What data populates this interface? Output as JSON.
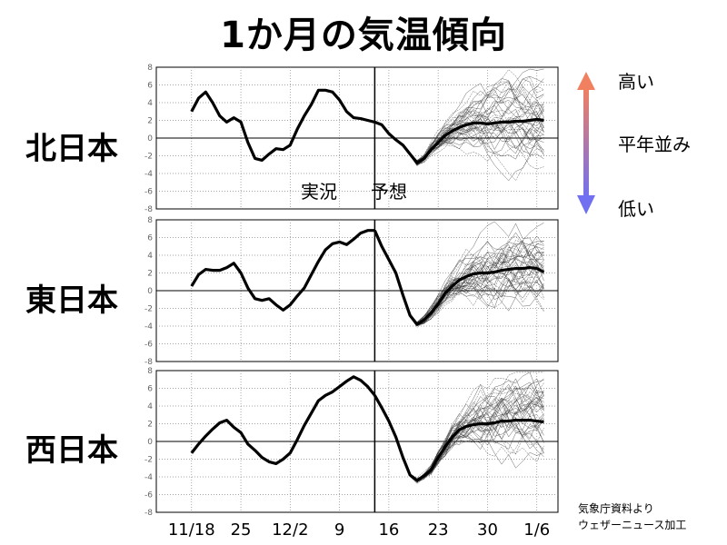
{
  "title": "1か月の気温傾向",
  "legend": {
    "high": "高い",
    "normal": "平年並み",
    "low": "低い",
    "arrow_top_color": "#f08060",
    "arrow_bottom_color": "#7070f0"
  },
  "credit": {
    "line1": "気象庁資料より",
    "line2": "ウェザーニュース加工"
  },
  "annotations": {
    "observed": "実況",
    "forecast": "予想"
  },
  "chart_data": {
    "type": "line",
    "x_tick_labels": [
      "11/18",
      "25",
      "12/2",
      "9",
      "16",
      "23",
      "30",
      "1/6"
    ],
    "x_tick_days": [
      0,
      7,
      14,
      21,
      28,
      35,
      42,
      49
    ],
    "xlim": [
      -5,
      52
    ],
    "ylim": [
      -8,
      8
    ],
    "y_ticks": [
      -8,
      -6,
      -4,
      -2,
      0,
      2,
      4,
      6,
      8
    ],
    "observed_end_day": 26,
    "grid": true,
    "panels": [
      {
        "region": "北日本",
        "observed": [
          [
            0,
            3.0
          ],
          [
            1,
            4.5
          ],
          [
            2,
            5.2
          ],
          [
            3,
            4.0
          ],
          [
            4,
            2.5
          ],
          [
            5,
            1.8
          ],
          [
            6,
            2.3
          ],
          [
            7,
            1.8
          ],
          [
            8,
            -0.5
          ],
          [
            9,
            -2.3
          ],
          [
            10,
            -2.5
          ],
          [
            11,
            -1.8
          ],
          [
            12,
            -1.2
          ],
          [
            13,
            -1.3
          ],
          [
            14,
            -0.8
          ],
          [
            15,
            1.0
          ],
          [
            16,
            2.5
          ],
          [
            17,
            3.8
          ],
          [
            18,
            5.4
          ],
          [
            19,
            5.4
          ],
          [
            20,
            5.2
          ],
          [
            21,
            4.3
          ],
          [
            22,
            3.0
          ],
          [
            23,
            2.3
          ],
          [
            24,
            2.2
          ],
          [
            25,
            2.0
          ],
          [
            26,
            1.8
          ]
        ],
        "ensemble_mean": [
          [
            26,
            1.8
          ],
          [
            27,
            1.5
          ],
          [
            28,
            0.5
          ],
          [
            29,
            -0.2
          ],
          [
            30,
            -0.8
          ],
          [
            31,
            -1.8
          ],
          [
            32,
            -2.8
          ],
          [
            33,
            -2.3
          ],
          [
            34,
            -1.3
          ],
          [
            35,
            -0.5
          ],
          [
            36,
            0.3
          ],
          [
            37,
            0.8
          ],
          [
            38,
            1.2
          ],
          [
            39,
            1.5
          ],
          [
            40,
            1.7
          ],
          [
            41,
            1.7
          ],
          [
            42,
            1.6
          ],
          [
            43,
            1.7
          ],
          [
            44,
            1.8
          ],
          [
            45,
            1.8
          ],
          [
            46,
            1.9
          ],
          [
            47,
            1.9
          ],
          [
            48,
            2.0
          ],
          [
            49,
            2.1
          ],
          [
            50,
            2.0
          ]
        ]
      },
      {
        "region": "東日本",
        "observed": [
          [
            0,
            0.5
          ],
          [
            1,
            1.8
          ],
          [
            2,
            2.4
          ],
          [
            3,
            2.3
          ],
          [
            4,
            2.3
          ],
          [
            5,
            2.6
          ],
          [
            6,
            3.1
          ],
          [
            7,
            2.0
          ],
          [
            8,
            0.3
          ],
          [
            9,
            -0.9
          ],
          [
            10,
            -1.1
          ],
          [
            11,
            -0.9
          ],
          [
            12,
            -1.6
          ],
          [
            13,
            -2.2
          ],
          [
            14,
            -1.6
          ],
          [
            15,
            -0.6
          ],
          [
            16,
            0.3
          ],
          [
            17,
            1.8
          ],
          [
            18,
            3.3
          ],
          [
            19,
            4.6
          ],
          [
            20,
            5.3
          ],
          [
            21,
            5.5
          ],
          [
            22,
            5.2
          ],
          [
            23,
            5.8
          ],
          [
            24,
            6.5
          ],
          [
            25,
            6.8
          ],
          [
            26,
            6.8
          ]
        ],
        "ensemble_mean": [
          [
            26,
            6.8
          ],
          [
            27,
            5.0
          ],
          [
            28,
            3.5
          ],
          [
            29,
            2.0
          ],
          [
            30,
            -0.5
          ],
          [
            31,
            -2.8
          ],
          [
            32,
            -3.8
          ],
          [
            33,
            -3.3
          ],
          [
            34,
            -2.5
          ],
          [
            35,
            -1.5
          ],
          [
            36,
            -0.3
          ],
          [
            37,
            0.5
          ],
          [
            38,
            1.2
          ],
          [
            39,
            1.6
          ],
          [
            40,
            1.9
          ],
          [
            41,
            2.0
          ],
          [
            42,
            2.0
          ],
          [
            43,
            2.1
          ],
          [
            44,
            2.3
          ],
          [
            45,
            2.4
          ],
          [
            46,
            2.5
          ],
          [
            47,
            2.5
          ],
          [
            48,
            2.6
          ],
          [
            49,
            2.5
          ],
          [
            50,
            2.1
          ]
        ]
      },
      {
        "region": "西日本",
        "observed": [
          [
            0,
            -1.3
          ],
          [
            1,
            -0.3
          ],
          [
            2,
            0.6
          ],
          [
            3,
            1.4
          ],
          [
            4,
            2.1
          ],
          [
            5,
            2.4
          ],
          [
            6,
            1.6
          ],
          [
            7,
            1.0
          ],
          [
            8,
            -0.3
          ],
          [
            9,
            -1.0
          ],
          [
            10,
            -1.8
          ],
          [
            11,
            -2.3
          ],
          [
            12,
            -2.5
          ],
          [
            13,
            -2.0
          ],
          [
            14,
            -1.3
          ],
          [
            15,
            0.2
          ],
          [
            16,
            1.8
          ],
          [
            17,
            3.2
          ],
          [
            18,
            4.6
          ],
          [
            19,
            5.2
          ],
          [
            20,
            5.6
          ],
          [
            21,
            6.2
          ],
          [
            22,
            6.8
          ],
          [
            23,
            7.3
          ],
          [
            24,
            6.9
          ],
          [
            25,
            6.2
          ],
          [
            26,
            5.2
          ]
        ],
        "ensemble_mean": [
          [
            26,
            5.2
          ],
          [
            27,
            3.8
          ],
          [
            28,
            2.3
          ],
          [
            29,
            0.5
          ],
          [
            30,
            -1.8
          ],
          [
            31,
            -3.8
          ],
          [
            32,
            -4.4
          ],
          [
            33,
            -3.9
          ],
          [
            34,
            -3.2
          ],
          [
            35,
            -1.8
          ],
          [
            36,
            -0.6
          ],
          [
            37,
            0.5
          ],
          [
            38,
            1.3
          ],
          [
            39,
            1.7
          ],
          [
            40,
            1.9
          ],
          [
            41,
            2.0
          ],
          [
            42,
            2.0
          ],
          [
            43,
            2.1
          ],
          [
            44,
            2.3
          ],
          [
            45,
            2.3
          ],
          [
            46,
            2.4
          ],
          [
            47,
            2.4
          ],
          [
            48,
            2.4
          ],
          [
            49,
            2.3
          ],
          [
            50,
            2.2
          ]
        ]
      }
    ]
  }
}
